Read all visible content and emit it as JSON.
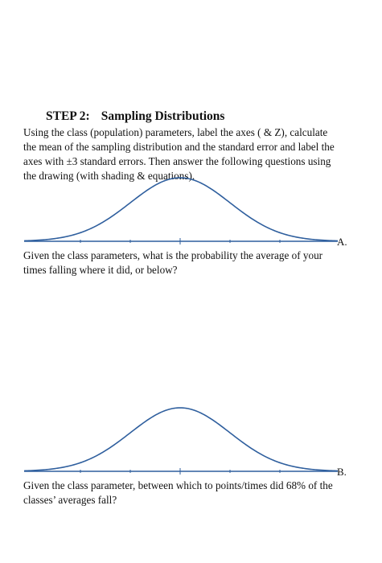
{
  "step": {
    "label": "STEP 2:",
    "title": "Sampling Distributions"
  },
  "instructions": {
    "lines": [
      "Using the class (population) parameters, label the axes ( & Z), calculate",
      "the mean of the sampling distribution and the standard error and label the",
      "axes with ±3 standard errors. Then answer the following questions using",
      "the drawing (with shading & equations)."
    ]
  },
  "curves": [
    {
      "label": "A."
    },
    {
      "label": "B."
    }
  ],
  "questions": [
    {
      "lines": [
        "Given the class parameters, what is the probability the average of your",
        "times falling where it did, or below?"
      ]
    },
    {
      "lines": [
        "Given the class parameter, between which to points/times did 68% of the",
        "classes’ averages fall?"
      ]
    }
  ],
  "colors": {
    "curve": "#2f5f9e",
    "axis": "#2f5f9e",
    "text": "#111111"
  }
}
